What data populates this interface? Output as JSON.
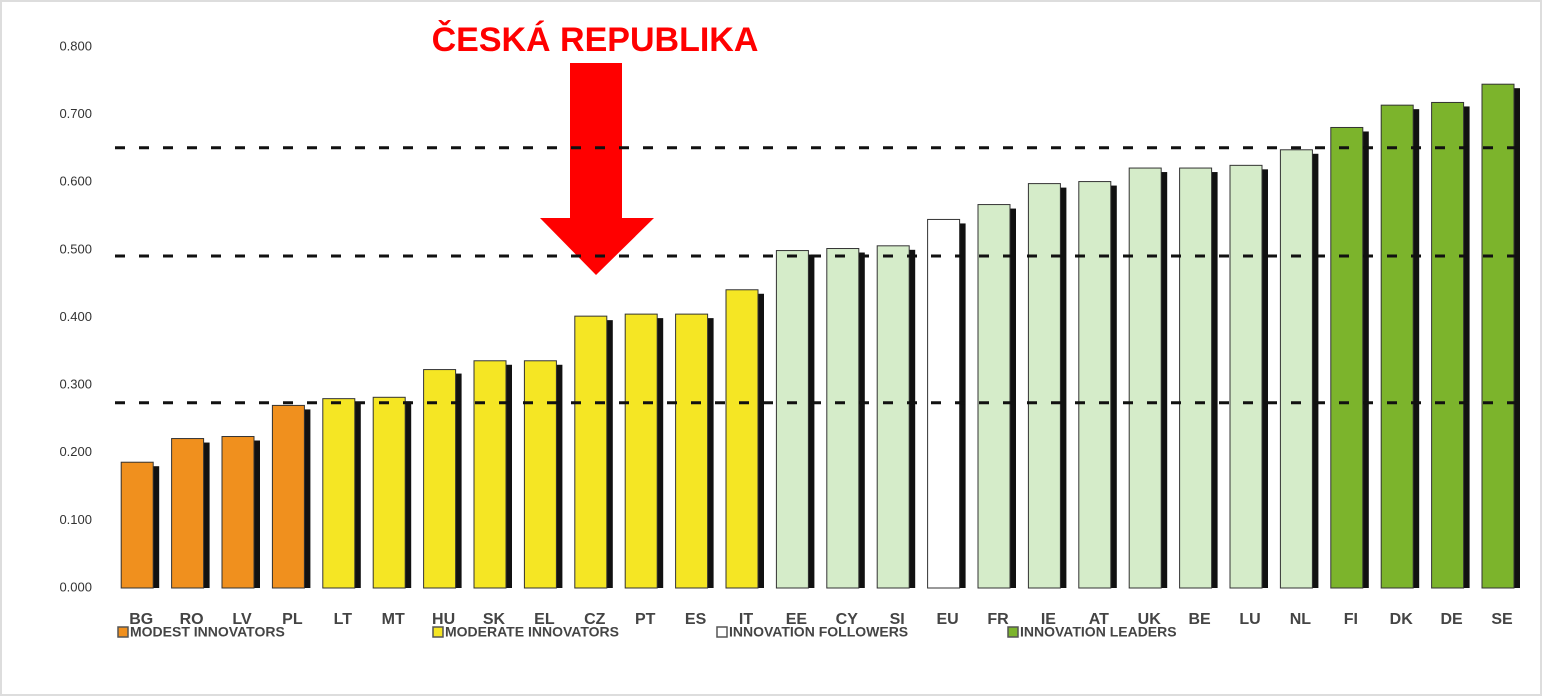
{
  "chart_data": {
    "type": "bar",
    "annotation": "ČESKÁ REPUBLIKA",
    "categories": [
      "BG",
      "RO",
      "LV",
      "PL",
      "LT",
      "MT",
      "HU",
      "SK",
      "EL",
      "CZ",
      "PT",
      "ES",
      "IT",
      "EE",
      "CY",
      "SI",
      "EU",
      "FR",
      "IE",
      "AT",
      "UK",
      "BE",
      "LU",
      "NL",
      "FI",
      "DK",
      "DE",
      "SE"
    ],
    "values": [
      0.186,
      0.221,
      0.224,
      0.27,
      0.28,
      0.282,
      0.323,
      0.336,
      0.336,
      0.402,
      0.405,
      0.405,
      0.441,
      0.499,
      0.502,
      0.506,
      0.545,
      0.567,
      0.598,
      0.601,
      0.621,
      0.621,
      0.625,
      0.648,
      0.681,
      0.714,
      0.718,
      0.745
    ],
    "colors": [
      "#f0901e",
      "#f0901e",
      "#f0901e",
      "#f0901e",
      "#f5e624",
      "#f5e624",
      "#f5e624",
      "#f5e624",
      "#f5e624",
      "#f5e624",
      "#f5e624",
      "#f5e624",
      "#f5e624",
      "#d5ecc9",
      "#d5ecc9",
      "#d5ecc9",
      "#ffffff",
      "#d5ecc9",
      "#d5ecc9",
      "#d5ecc9",
      "#d5ecc9",
      "#d5ecc9",
      "#d5ecc9",
      "#d5ecc9",
      "#7cb42c",
      "#7cb42c",
      "#7cb42c",
      "#7cb42c"
    ],
    "legend": [
      {
        "name": "MODEST INNOVATORS",
        "color": "#f0901e"
      },
      {
        "name": "MODERATE INNOVATORS",
        "color": "#f5e624"
      },
      {
        "name": "INNOVATION FOLLOWERS",
        "color": "#ffffff"
      },
      {
        "name": "INNOVATION LEADERS",
        "color": "#7cb42c"
      }
    ],
    "reference_lines": [
      0.651,
      0.491,
      0.274
    ],
    "ylim": [
      0,
      0.8
    ],
    "yticks": [
      {
        "value": 0,
        "label": "0.000"
      },
      {
        "value": 0.1,
        "label": "0.100"
      },
      {
        "value": 0.2,
        "label": "0.200"
      },
      {
        "value": 0.3,
        "label": "0.300"
      },
      {
        "value": 0.4,
        "label": "0.400"
      },
      {
        "value": 0.5,
        "label": "0.500"
      },
      {
        "value": 0.6,
        "label": "0.600"
      },
      {
        "value": 0.7,
        "label": "0.700"
      },
      {
        "value": 0.8,
        "label": "0.800"
      }
    ]
  }
}
